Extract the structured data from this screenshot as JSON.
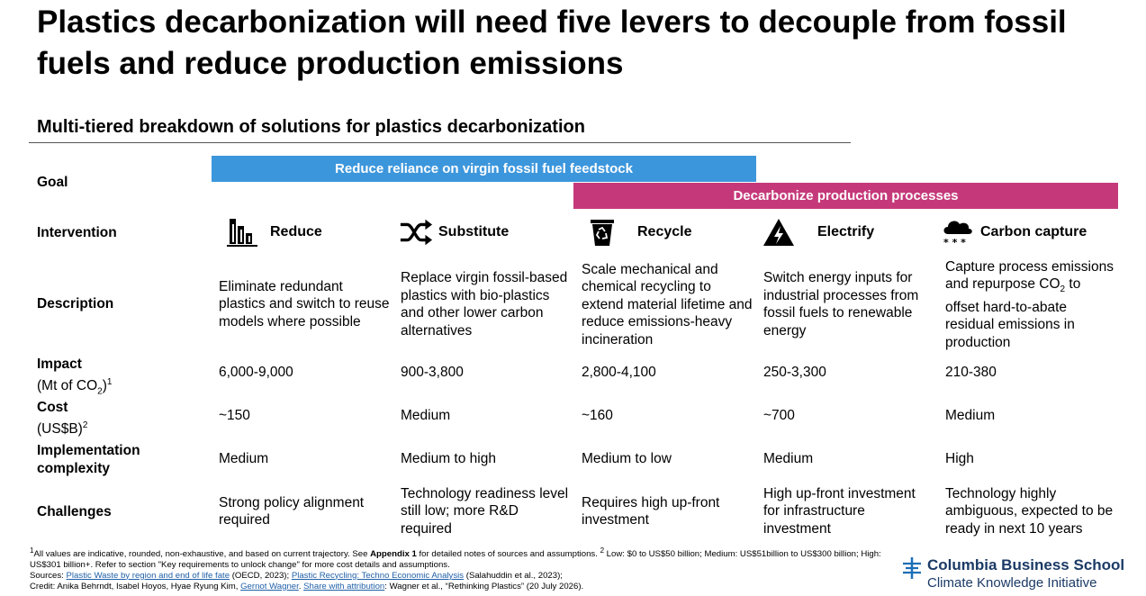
{
  "title": "Plastics decarbonization will need five levers to decouple from fossil fuels and reduce production emissions",
  "subtitle": "Multi-tiered breakdown of solutions for plastics decarbonization",
  "goals": {
    "blue": "Reduce reliance on virgin fossil fuel feedstock",
    "pink": "Decarbonize production processes",
    "colors": {
      "blue": "#3c96dc",
      "pink": "#c5397a"
    }
  },
  "row_labels": {
    "goal": "Goal",
    "intervention": "Intervention",
    "description": "Description",
    "impact": "Impact",
    "impact_unit_pre": "(Mt of CO",
    "impact_unit_sub": "2",
    "impact_unit_post": ")",
    "impact_sup": "1",
    "cost": "Cost",
    "cost_unit": "(US$B)",
    "cost_sup": "2",
    "implementation": "Implementation complexity",
    "challenges": "Challenges"
  },
  "levers": [
    {
      "name": "Reduce",
      "icon": "bar-chart-down-icon",
      "description": "Eliminate redundant plastics and switch to reuse models where possible",
      "impact": "6,000-9,000",
      "cost": "~150",
      "complexity": "Medium",
      "challenges": "Strong policy alignment required"
    },
    {
      "name": "Substitute",
      "icon": "shuffle-icon",
      "description": "Replace virgin fossil-based plastics with bio-plastics and other lower carbon alternatives",
      "impact": "900-3,800",
      "cost": "Medium",
      "complexity": "Medium to high",
      "challenges": "Technology readiness level still low; more R&D required"
    },
    {
      "name": "Recycle",
      "icon": "recycle-bin-icon",
      "description": "Scale mechanical and chemical recycling to extend material lifetime and reduce emissions-heavy incineration",
      "impact": "2,800-4,100",
      "cost": "~160",
      "complexity": "Medium to low",
      "challenges": "Requires high up-front investment"
    },
    {
      "name": "Electrify",
      "icon": "high-voltage-icon",
      "description": "Switch energy inputs for industrial processes from fossil fuels to renewable energy",
      "impact": "250-3,300",
      "cost": "~700",
      "complexity": "Medium",
      "challenges": "High up-front investment for infrastructure investment"
    },
    {
      "name": "Carbon capture",
      "icon": "cloud-co2-icon",
      "description_pre": "Capture process emissions and repurpose CO",
      "description_sub": "2",
      "description_post": " to offset hard-to-abate residual emissions in production",
      "impact": "210-380",
      "cost": "Medium",
      "complexity": "High",
      "challenges": "Technology highly ambiguous, expected to be ready in next 10 years"
    }
  ],
  "footnotes": {
    "line1_a": "All values are indicative, rounded, non-exhaustive, and based on current trajectory. See ",
    "line1_sup": "1",
    "line1_bold": "Appendix 1",
    "line1_b": " for detailed notes of sources and assumptions. ",
    "line1_sup2": "2",
    "line1_c": " Low: $0 to US$50 billion; Medium: US$51billion to US$300 billion; High: US$301 billion+. Refer to section \"Key requirements to unlock change\" for more cost details and assumptions.",
    "sources_label": "Sources: ",
    "source1_link": "Plastic Waste by region and end of life fate",
    "source1_rest": " (OECD, 2023); ",
    "source2_link": "Plastic Recycling: Techno Economic Analysis",
    "source2_rest": " (Salahuddin et al., 2023);",
    "credit_a": "Credit: Anika Behrndt, Isabel Hoyos, Hyae Ryung Kim, ",
    "credit_link1": "Gernot Wagner",
    "credit_b": ". ",
    "credit_link2": "Share with attribution",
    "credit_c": ": Wagner et al., “Rethinking Plastics” (20 July 2026)."
  },
  "logo": {
    "line1": "Columbia Business School",
    "line2": "Climate Knowledge Initiative",
    "icon": "columbia-crown-icon"
  }
}
